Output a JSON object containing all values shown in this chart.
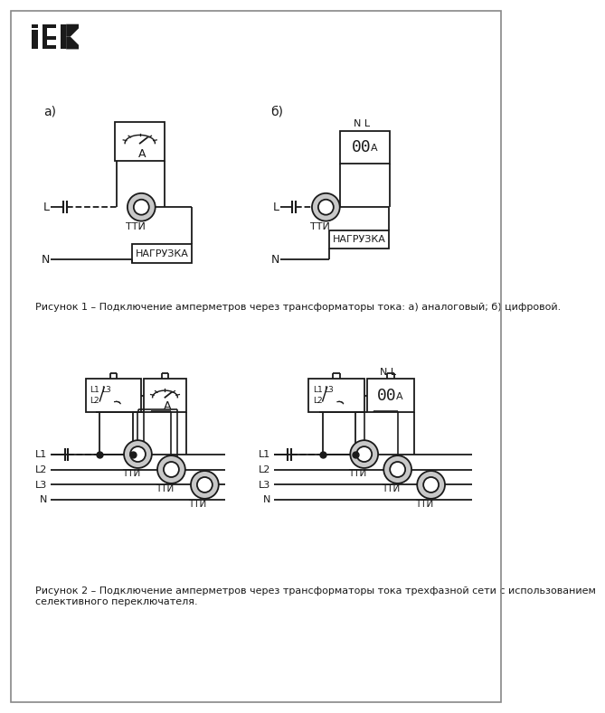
{
  "bg_color": "#ffffff",
  "line_color": "#1a1a1a",
  "text_color": "#1a1a1a",
  "torus_fill": "#c8c8c8",
  "caption1": "Рисунок 1 – Подключение амперметров через трансформаторы тока: а) аналоговый; б) цифровой.",
  "caption2": "Рисунок 2 – Подключение амперметров через трансформаторы тока трехфазной сети с использованием",
  "caption2b": "селективного переключателя.",
  "label_a": "а)",
  "label_b": "б)",
  "label_TTI": "ТТИ",
  "label_NAGRUZKA": "НАГРУЗКА"
}
